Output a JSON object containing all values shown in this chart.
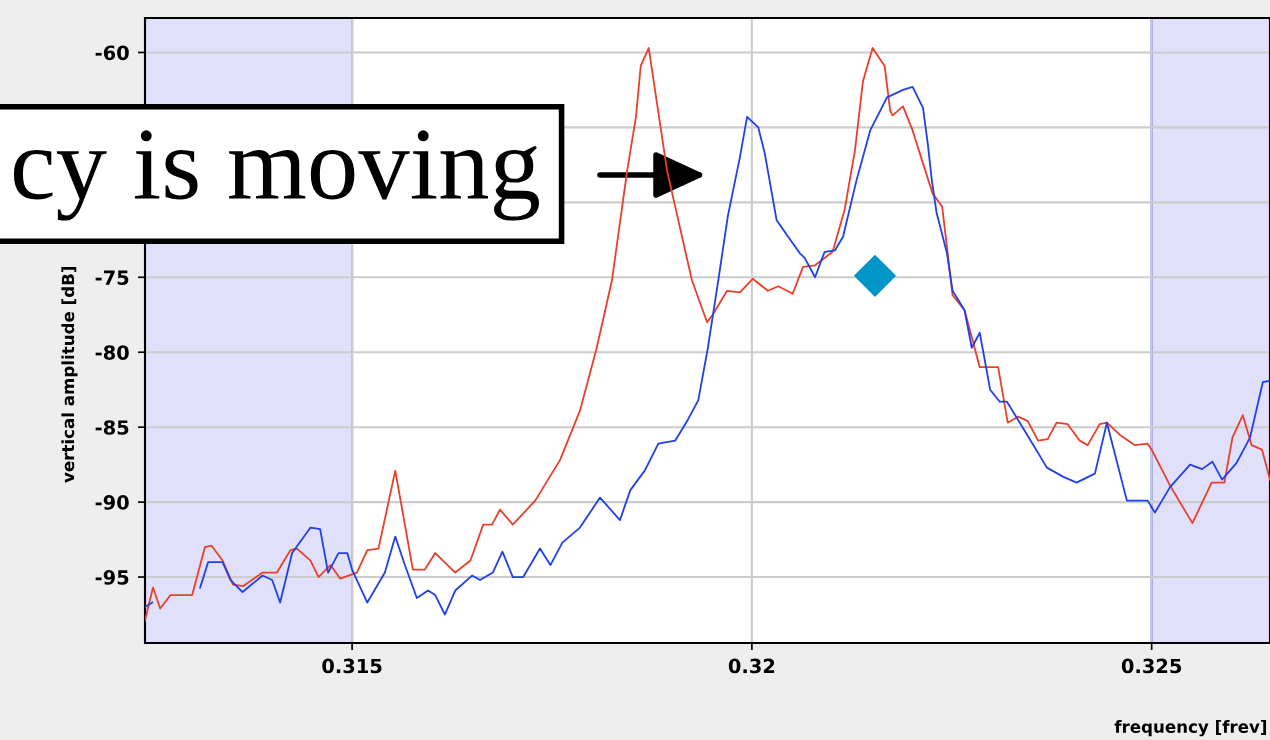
{
  "chart_data": {
    "type": "line",
    "xlabel": "frequency [frev]",
    "ylabel": "vertical amplitude [dB]",
    "xlim": [
      0.31241,
      0.32648
    ],
    "ylim": [
      -99.4,
      -57.7
    ],
    "xticks": [
      0.315,
      0.32,
      0.325
    ],
    "yticks": [
      -60,
      {
        "value": -65,
        "label": null
      },
      {
        "value": -70,
        "label": null
      },
      -75,
      -80,
      -85,
      -90,
      -95
    ],
    "grid": true,
    "legend": false,
    "line_style": "solid",
    "marker": "none",
    "annotations": [
      "cy is moving"
    ],
    "bands": [
      {
        "axis": "x",
        "from": 0.31241,
        "to": 0.315,
        "color": "#e0e0fa"
      },
      {
        "axis": "x",
        "from": 0.325,
        "to": 0.32648,
        "color": "#e0e0fa"
      }
    ],
    "series": [
      {
        "color": "#e8402a",
        "x": [
          0.31241,
          0.31251,
          0.3126,
          0.31273,
          0.313,
          0.31316,
          0.31324,
          0.31338,
          0.31351,
          0.31364,
          0.31388,
          0.31406,
          0.31423,
          0.31431,
          0.31448,
          0.31458,
          0.31473,
          0.31485,
          0.31506,
          0.31519,
          0.31533,
          0.31554,
          0.31576,
          0.31591,
          0.31604,
          0.31629,
          0.31648,
          0.31664,
          0.31675,
          0.31685,
          0.31701,
          0.31729,
          0.3176,
          0.31785,
          0.31806,
          0.31825,
          0.31844,
          0.31855,
          0.31861,
          0.31871,
          0.31876,
          0.31894,
          0.31925,
          0.31944,
          0.31951,
          0.31969,
          0.31985,
          0.32001,
          0.3202,
          0.32033,
          0.32051,
          0.32064,
          0.32079,
          0.32101,
          0.32116,
          0.32129,
          0.32139,
          0.32151,
          0.32166,
          0.32173,
          0.32176,
          0.32189,
          0.32201,
          0.32214,
          0.32226,
          0.32238,
          0.32244,
          0.32251,
          0.32266,
          0.32285,
          0.32308,
          0.3232,
          0.32333,
          0.32345,
          0.32358,
          0.3237,
          0.32381,
          0.32395,
          0.3241,
          0.3242,
          0.32435,
          0.32444,
          0.3246,
          0.32479,
          0.32495,
          0.325,
          0.32523,
          0.32551,
          0.32575,
          0.32591,
          0.32601,
          0.32614,
          0.32625,
          0.32638,
          0.32648
        ],
        "values": [
          -97.9,
          -95.7,
          -97.1,
          -96.2,
          -96.2,
          -93.0,
          -92.9,
          -93.9,
          -95.5,
          -95.6,
          -94.7,
          -94.7,
          -93.2,
          -93.1,
          -93.9,
          -95.0,
          -94.2,
          -95.1,
          -94.7,
          -93.2,
          -93.1,
          -87.9,
          -94.5,
          -94.5,
          -93.4,
          -94.7,
          -93.9,
          -91.5,
          -91.5,
          -90.5,
          -91.5,
          -89.9,
          -87.2,
          -83.9,
          -79.7,
          -75.2,
          -67.9,
          -64.3,
          -60.9,
          -59.7,
          -61.5,
          -67.9,
          -75.2,
          -78.0,
          -77.5,
          -75.9,
          -76.0,
          -75.1,
          -75.9,
          -75.6,
          -76.1,
          -74.3,
          -74.2,
          -73.3,
          -70.5,
          -66.5,
          -61.9,
          -59.7,
          -60.9,
          -63.9,
          -64.2,
          -63.6,
          -65.2,
          -67.4,
          -69.4,
          -70.3,
          -73.0,
          -76.2,
          -77.2,
          -81.0,
          -81.0,
          -84.7,
          -84.3,
          -84.6,
          -85.9,
          -85.8,
          -84.7,
          -84.8,
          -85.9,
          -86.2,
          -84.8,
          -84.7,
          -85.5,
          -86.2,
          -86.1,
          -86.5,
          -88.9,
          -91.4,
          -88.7,
          -88.7,
          -85.7,
          -84.2,
          -86.2,
          -86.5,
          -88.5
        ]
      },
      {
        "color": "#2040e8",
        "x": [
          0.31241,
          0.3125,
          0.31264,
          0.31294,
          0.3131,
          0.3132,
          0.31338,
          0.31348,
          0.31363,
          0.31388,
          0.314,
          0.3141,
          0.31425,
          0.31448,
          0.3146,
          0.3147,
          0.31483,
          0.31494,
          0.315,
          0.31519,
          0.31541,
          0.31554,
          0.31566,
          0.31581,
          0.31595,
          0.31604,
          0.31616,
          0.31629,
          0.3165,
          0.3166,
          0.31676,
          0.31688,
          0.31701,
          0.31714,
          0.31735,
          0.31748,
          0.31763,
          0.31785,
          0.3181,
          0.31835,
          0.31848,
          0.31866,
          0.31883,
          0.31904,
          0.3192,
          0.31933,
          0.31945,
          0.31958,
          0.3197,
          0.31985,
          0.31994,
          0.32008,
          0.32016,
          0.32031,
          0.32048,
          0.3206,
          0.32066,
          0.32079,
          0.32091,
          0.32104,
          0.32114,
          0.32131,
          0.32148,
          0.32169,
          0.32189,
          0.32201,
          0.32214,
          0.3222,
          0.32225,
          0.32231,
          0.32244,
          0.32251,
          0.32266,
          0.32275,
          0.32285,
          0.32298,
          0.3231,
          0.32319,
          0.32351,
          0.32369,
          0.32389,
          0.32406,
          0.32429,
          0.32444,
          0.32469,
          0.32495,
          0.32504,
          0.32523,
          0.32548,
          0.32563,
          0.32576,
          0.32588,
          0.32606,
          0.32623,
          0.32639,
          0.32648
        ],
        "values": [
          -97.0,
          -96.7,
          null,
          null,
          -95.7,
          -94.0,
          -94.0,
          -95.2,
          -96.0,
          -94.9,
          -95.2,
          -96.7,
          -93.4,
          -91.7,
          -91.8,
          -94.7,
          -93.4,
          -93.4,
          -94.5,
          -96.7,
          -94.7,
          -92.3,
          -94.2,
          -96.4,
          -95.9,
          -96.2,
          -97.5,
          -95.9,
          -94.9,
          -95.2,
          -94.7,
          -93.3,
          -95.0,
          -95.0,
          -93.1,
          -94.2,
          -92.7,
          -91.7,
          -89.7,
          -91.2,
          -89.2,
          -87.9,
          -86.1,
          -85.9,
          -84.5,
          -83.2,
          -79.7,
          -75.2,
          -70.9,
          -67.0,
          -64.3,
          -65.0,
          -66.7,
          -71.2,
          -72.5,
          -73.4,
          -73.7,
          -75.0,
          -73.3,
          -73.2,
          -72.3,
          -68.5,
          -65.2,
          -63.0,
          -62.5,
          -62.3,
          -63.7,
          -66.1,
          -68.5,
          -70.7,
          -73.4,
          -75.9,
          -77.2,
          -79.7,
          -78.7,
          -82.5,
          -83.3,
          -83.3,
          -86.1,
          -87.7,
          -88.3,
          -88.7,
          -88.1,
          -84.7,
          -89.9,
          -89.9,
          -90.7,
          -89.0,
          -87.5,
          -87.8,
          -87.3,
          -88.5,
          -87.4,
          -85.7,
          -82.0,
          -81.9
        ]
      },
      {
        "type": "scatter",
        "marker": "diamond",
        "color": "#0096c8",
        "x": [
          0.32154
        ],
        "values": [
          -74.9
        ]
      }
    ]
  }
}
